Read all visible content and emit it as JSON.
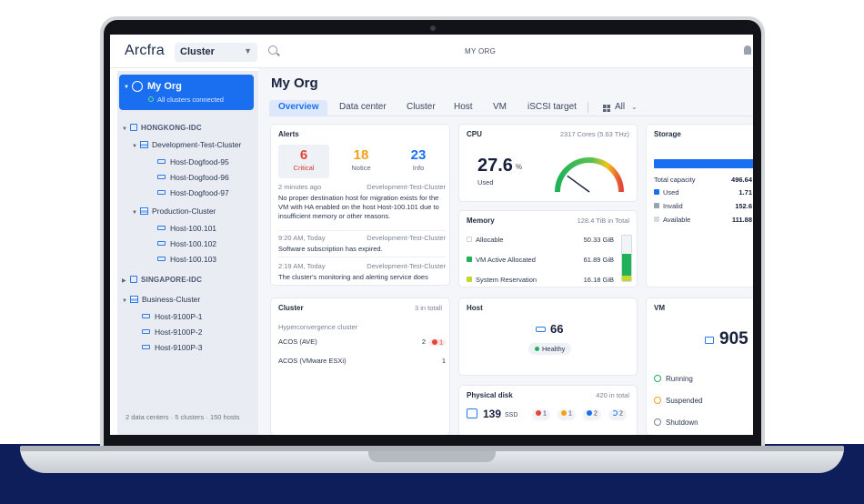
{
  "app": {
    "logo": "Arcfra",
    "scope": "Cluster",
    "org_name": "MY ORG"
  },
  "sidebar": {
    "org": {
      "title": "My Org",
      "status": "All clusters connected"
    },
    "datacenters": [
      {
        "name": "HONGKONG-IDC"
      },
      {
        "name": "SINGAPORE-IDC"
      }
    ],
    "clusters": [
      {
        "name": "Development-Test-Cluster",
        "hosts": [
          "Host-Dogfood-95",
          "Host-Dogfood-96",
          "Host-Dogfood-97"
        ]
      },
      {
        "name": "Production-Cluster",
        "hosts": [
          "Host-100.101",
          "Host-100.102",
          "Host-100.103"
        ]
      },
      {
        "name": "Business-Cluster",
        "hosts": [
          "Host-9100P-1",
          "Host-9100P-2",
          "Host-9100P-3"
        ]
      }
    ],
    "footer": "2 data centers  ·  5 clusters  ·  150 hosts"
  },
  "main": {
    "title": "My Org",
    "tabs": [
      "Overview",
      "Data center",
      "Cluster",
      "Host",
      "VM",
      "iSCSI target"
    ],
    "filter": "All"
  },
  "alerts": {
    "title": "Alerts",
    "critical": {
      "count": "6",
      "label": "Critical",
      "color": "#e2463a"
    },
    "notice": {
      "count": "18",
      "label": "Notice",
      "color": "#f2a11b"
    },
    "info": {
      "count": "23",
      "label": "Info",
      "color": "#1a6ff1"
    },
    "items": [
      {
        "time": "2 minutes ago",
        "source": "Development-Test-Cluster",
        "message": "No proper destination host for migration exists for the VM with HA enabled on the host Host-100.101 due to insufficient memory or other reasons."
      },
      {
        "time": "9:20 AM, Today",
        "source": "Development-Test-Cluster",
        "message": "Software subscription has expired."
      },
      {
        "time": "2:19 AM, Today",
        "source": "Development-Test-Cluster",
        "message": "The cluster's monitoring and alerting service does"
      }
    ]
  },
  "cpu": {
    "title": "CPU",
    "meta": "2317 Cores (5.63 THz)",
    "value": "27.6",
    "unit": "%",
    "label": "Used",
    "percent": 27.6
  },
  "memory": {
    "title": "Memory",
    "meta": "128.4 TiB in Total",
    "rows": [
      {
        "label": "Allocable",
        "value": "50.33 GiB",
        "color": "#ffffff"
      },
      {
        "label": "VM Active Allocated",
        "value": "61.89 GiB",
        "color": "#1fb25a"
      },
      {
        "label": "System Reservation",
        "value": "16.18 GiB",
        "color": "#c5d72d"
      }
    ]
  },
  "storage": {
    "title": "Storage",
    "rows": [
      {
        "label": "Total capacity",
        "value": "496.64",
        "color": ""
      },
      {
        "label": "Used",
        "value": "1.71",
        "color": "#1a6ff1"
      },
      {
        "label": "Invalid",
        "value": "152.6",
        "color": "#9aa1b0"
      },
      {
        "label": "Available",
        "value": "111.88",
        "color": "#d6dbe3"
      }
    ]
  },
  "cluster": {
    "title": "Cluster",
    "meta": "3 in totall",
    "group": "Hyperconvergence cluster",
    "rows": [
      {
        "label": "ACOS (AVE)",
        "count": "2",
        "errors": "1"
      },
      {
        "label": "ACOS (VMware ESXi)",
        "count": "1"
      }
    ]
  },
  "host": {
    "title": "Host",
    "count": "66",
    "status": "Healthy"
  },
  "disk": {
    "title": "Physical disk",
    "meta": "420 in total",
    "count": "139",
    "unit": "SSD",
    "badges": [
      {
        "value": "1",
        "color": "#e2463a"
      },
      {
        "value": "1",
        "color": "#f2a11b"
      },
      {
        "value": "2",
        "color": "#1a6ff1"
      },
      {
        "value": "2",
        "color": "#1a6ff1"
      }
    ]
  },
  "vm": {
    "title": "VM",
    "count": "905",
    "states": [
      {
        "label": "Running",
        "color": "#1fb25a"
      },
      {
        "label": "Suspended",
        "color": "#f2a11b"
      },
      {
        "label": "Shutdown",
        "color": "#7a8296"
      }
    ]
  }
}
